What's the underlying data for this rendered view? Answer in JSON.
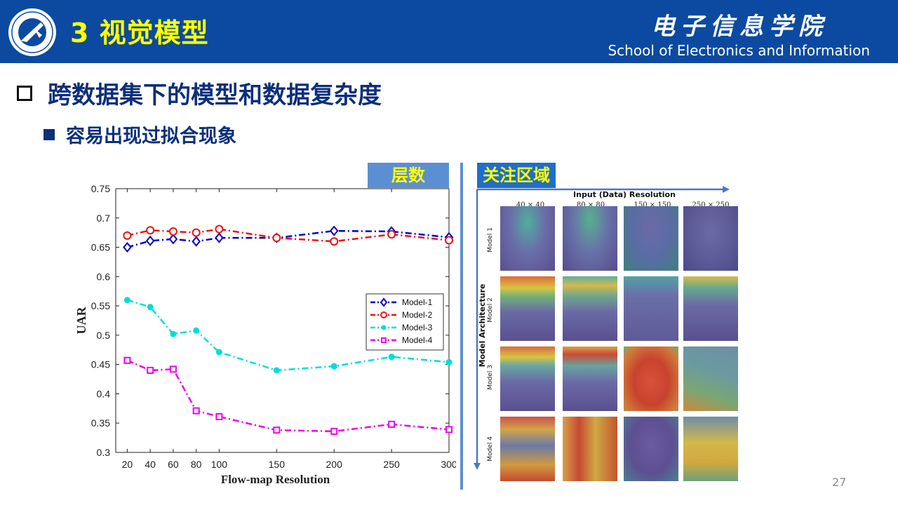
{
  "header": {
    "title": "3 视觉模型",
    "school_cn": "电子信息学院",
    "school_en": "School of Electronics and Information",
    "bg_color": "#0b4aa0",
    "title_color": "#ffff00"
  },
  "content": {
    "bullet1": "跨数据集下的模型和数据复杂度",
    "bullet2": "容易出现过拟合现象",
    "tag_layers": "层数",
    "tag_focus": "关注区域",
    "page_number": "27"
  },
  "chart_data": {
    "type": "line",
    "title": "",
    "xlabel": "Flow-map Resolution",
    "ylabel": "UAR",
    "ylim": [
      0.3,
      0.75
    ],
    "y_ticks": [
      "0.3",
      "0.35",
      "0.4",
      "0.45",
      "0.5",
      "0.55",
      "0.6",
      "0.65",
      "0.7",
      "0.75"
    ],
    "x": [
      20,
      40,
      60,
      80,
      100,
      150,
      200,
      250,
      300
    ],
    "x_ticks": [
      "20",
      "40",
      "60",
      "80",
      "100",
      "150",
      "200",
      "250",
      "300"
    ],
    "legend_position": "right",
    "series": [
      {
        "name": "Model-1",
        "color": "#0000cc",
        "marker": "diamond",
        "values": [
          0.65,
          0.661,
          0.664,
          0.66,
          0.666,
          0.666,
          0.678,
          0.677,
          0.667
        ]
      },
      {
        "name": "Model-2",
        "color": "#ee1111",
        "marker": "circle",
        "values": [
          0.67,
          0.679,
          0.677,
          0.675,
          0.681,
          0.666,
          0.66,
          0.672,
          0.662
        ]
      },
      {
        "name": "Model-3",
        "color": "#00dddd",
        "marker": "dot",
        "values": [
          0.56,
          0.548,
          0.502,
          0.508,
          0.471,
          0.44,
          0.447,
          0.463,
          0.454
        ]
      },
      {
        "name": "Model-4",
        "color": "#ee00ee",
        "marker": "square",
        "values": [
          0.457,
          0.44,
          0.442,
          0.371,
          0.361,
          0.338,
          0.336,
          0.348,
          0.339
        ]
      }
    ]
  },
  "attention_grid": {
    "x_title": "Input (Data) Resolution",
    "y_title": "Model Architecture",
    "columns": [
      "40 × 40",
      "80 × 80",
      "150 × 150",
      "250 × 250"
    ],
    "rows": [
      "Model 1",
      "Model 2",
      "Model 3",
      "Model 4"
    ]
  }
}
